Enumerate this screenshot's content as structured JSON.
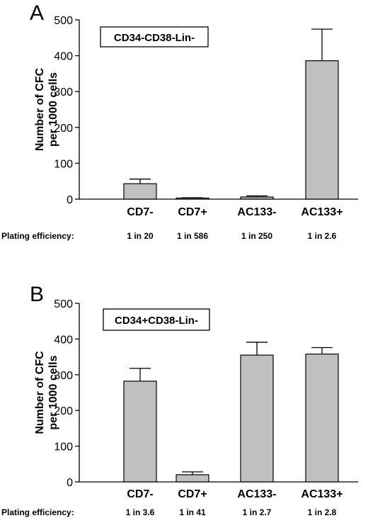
{
  "chart_data": [
    {
      "type": "bar",
      "panel": "A",
      "label": "CD34-CD38-Lin-",
      "categories": [
        "CD7-",
        "CD7+",
        "AC133-",
        "AC133+"
      ],
      "values": [
        43,
        3,
        6,
        386
      ],
      "errors": [
        13,
        1,
        3,
        88
      ],
      "ylabel": "Number of CFC per 1000 cells",
      "ylabel_lines": [
        "Number of CFC",
        "per 1000 cells"
      ],
      "ylim": [
        0,
        500
      ],
      "yticks": [
        0,
        100,
        200,
        300,
        400,
        500
      ],
      "plating_label": "Plating efficiency:",
      "plating": [
        "1 in 20",
        "1 in 586",
        "1 in 250",
        "1 in 2.6"
      ],
      "bar_color": "#c0c0c0"
    },
    {
      "type": "bar",
      "panel": "B",
      "label": "CD34+CD38-Lin-",
      "categories": [
        "CD7-",
        "CD7+",
        "AC133-",
        "AC133+"
      ],
      "values": [
        282,
        20,
        355,
        358
      ],
      "errors": [
        36,
        8,
        36,
        18
      ],
      "ylabel": "Number of CFC per 1000 cells",
      "ylabel_lines": [
        "Number of CFC",
        "per 1000 cells"
      ],
      "ylim": [
        0,
        500
      ],
      "yticks": [
        0,
        100,
        200,
        300,
        400,
        500
      ],
      "plating_label": "Plating efficiency:",
      "plating": [
        "1 in 3.6",
        "1 in 41",
        "1 in 2.7",
        "1 in 2.8"
      ],
      "bar_color": "#c0c0c0"
    }
  ]
}
